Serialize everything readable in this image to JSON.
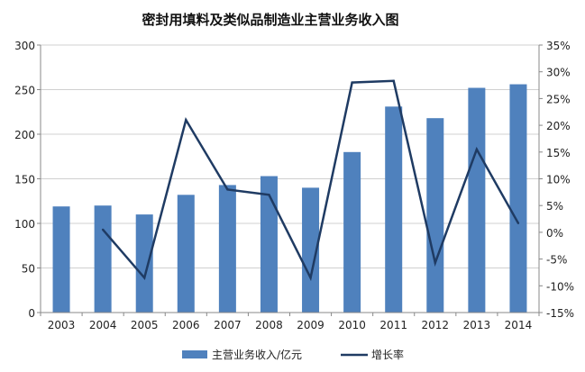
{
  "chart_data": {
    "type": "bar",
    "title": "密封用填料及类似品制造业主营业务收入图",
    "categories": [
      "2003",
      "2004",
      "2005",
      "2006",
      "2007",
      "2008",
      "2009",
      "2010",
      "2011",
      "2012",
      "2013",
      "2014"
    ],
    "series": [
      {
        "name": "主营业务收入/亿元",
        "type": "bar",
        "axis": "left",
        "color": "#4f81bd",
        "values": [
          119,
          120,
          110,
          132,
          143,
          153,
          140,
          180,
          231,
          218,
          252,
          256
        ]
      },
      {
        "name": "增长率",
        "type": "line",
        "axis": "right",
        "color": "#1f3b63",
        "values": [
          null,
          0.5,
          -8.5,
          21.0,
          8.0,
          7.0,
          -8.5,
          28.0,
          28.3,
          -5.7,
          15.5,
          1.7
        ]
      }
    ],
    "y_left": {
      "ylim": [
        0,
        300
      ],
      "ticks": [
        "0",
        "50",
        "100",
        "150",
        "200",
        "250",
        "300"
      ]
    },
    "y_right": {
      "ylim": [
        -15,
        35
      ],
      "ticks": [
        "-15%",
        "-10%",
        "-5%",
        "0%",
        "5%",
        "10%",
        "15%",
        "20%",
        "25%",
        "30%",
        "35%"
      ]
    },
    "grid": "horizontal",
    "legend_position": "bottom"
  }
}
